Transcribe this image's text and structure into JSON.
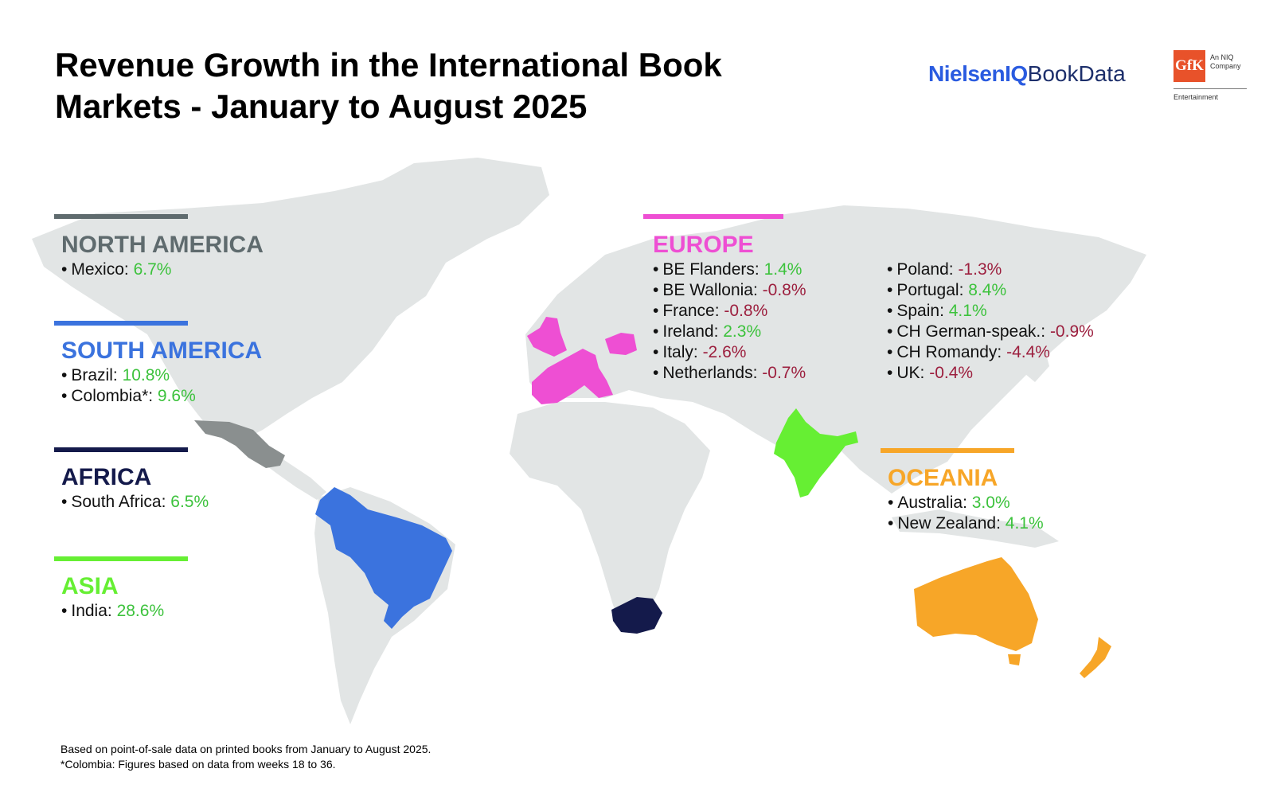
{
  "title": {
    "line1": "Revenue Growth in the International Book",
    "line2": "Markets - January to August 2025"
  },
  "logos": {
    "nielsen_strong": "NielsenIQ",
    "nielsen_light": "BookData",
    "gfk": "GfK",
    "gfk_sub1": "An NIQ",
    "gfk_sub2": "Company",
    "gfk_division": "Entertainment"
  },
  "colors": {
    "land": "#e2e5e5",
    "north_america": "#5f6b6e",
    "mexico_fill": "#8a8f8f",
    "south_america": "#3b73de",
    "africa": "#141a4b",
    "asia": "#66ef33",
    "europe": "#ee4fd3",
    "oceania": "#f7a628",
    "positive": "#3cc23c",
    "negative": "#9c1f3e"
  },
  "regions": {
    "north_america": {
      "name": "NORTH AMERICA",
      "items": [
        {
          "label": "Mexico:",
          "value": "6.7%",
          "sign": "pos"
        }
      ]
    },
    "south_america": {
      "name": "SOUTH AMERICA",
      "items": [
        {
          "label": "Brazil:",
          "value": "10.8%",
          "sign": "pos"
        },
        {
          "label": "Colombia*:",
          "value": "9.6%",
          "sign": "pos"
        }
      ]
    },
    "africa": {
      "name": "AFRICA",
      "items": [
        {
          "label": "South Africa:",
          "value": "6.5%",
          "sign": "pos"
        }
      ]
    },
    "asia": {
      "name": "ASIA",
      "items": [
        {
          "label": "India:",
          "value": "28.6%",
          "sign": "pos"
        }
      ]
    },
    "europe": {
      "name": "EUROPE",
      "col1": [
        {
          "label": "BE Flanders:",
          "value": "1.4%",
          "sign": "pos"
        },
        {
          "label": "BE Wallonia:",
          "value": "-0.8%",
          "sign": "neg"
        },
        {
          "label": "France:",
          "value": "-0.8%",
          "sign": "neg"
        },
        {
          "label": "Ireland:",
          "value": "2.3%",
          "sign": "pos"
        },
        {
          "label": "Italy:",
          "value": "-2.6%",
          "sign": "neg"
        },
        {
          "label": "Netherlands:",
          "value": "-0.7%",
          "sign": "neg"
        }
      ],
      "col2": [
        {
          "label": "Poland:",
          "value": "-1.3%",
          "sign": "neg"
        },
        {
          "label": "Portugal:",
          "value": "8.4%",
          "sign": "pos"
        },
        {
          "label": "Spain:",
          "value": "4.1%",
          "sign": "pos"
        },
        {
          "label": "CH German-speak.:",
          "value": "-0.9%",
          "sign": "neg"
        },
        {
          "label": "CH Romandy:",
          "value": "-4.4%",
          "sign": "neg"
        },
        {
          "label": "UK:",
          "value": "-0.4%",
          "sign": "neg"
        }
      ]
    },
    "oceania": {
      "name": "OCEANIA",
      "items": [
        {
          "label": "Australia:",
          "value": "3.0%",
          "sign": "pos"
        },
        {
          "label": "New Zealand:",
          "value": "4.1%",
          "sign": "pos"
        }
      ]
    }
  },
  "footnote": {
    "line1": "Based on point-of-sale data on printed books from January to August 2025.",
    "line2": "*Colombia: Figures based on data from weeks 18 to 36."
  }
}
